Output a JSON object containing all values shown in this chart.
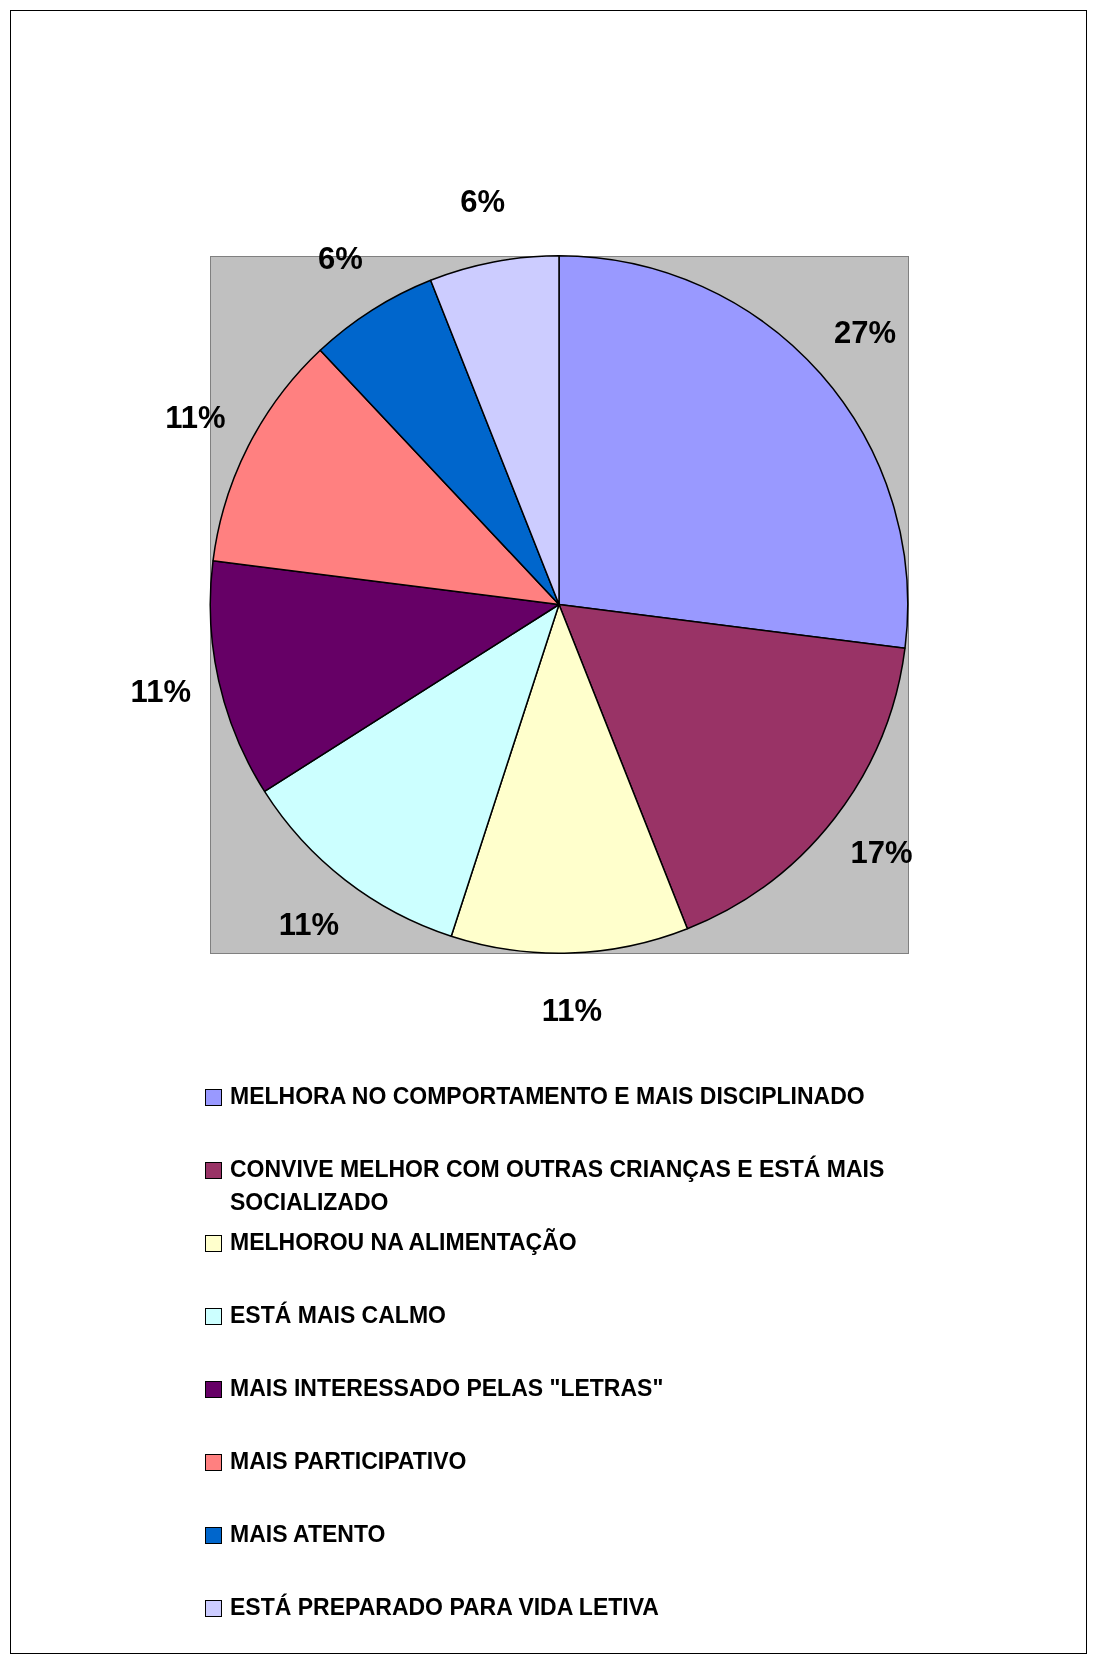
{
  "chart_data": {
    "type": "pie",
    "categories": [
      "MELHORA NO COMPORTAMENTO E MAIS DISCIPLINADO",
      "CONVIVE MELHOR COM OUTRAS CRIANÇAS E ESTÁ MAIS SOCIALIZADO",
      "MELHOROU NA ALIMENTAÇÃO",
      "ESTÁ MAIS CALMO",
      "MAIS INTERESSADO PELAS \"LETRAS\"",
      "MAIS PARTICIPATIVO",
      "MAIS ATENTO",
      "ESTÁ PREPARADO PARA VIDA LETIVA"
    ],
    "values": [
      27,
      17,
      11,
      11,
      11,
      11,
      6,
      6
    ],
    "colors": [
      "#9999ff",
      "#993366",
      "#ffffcc",
      "#ccffff",
      "#660066",
      "#ff8080",
      "#0066cc",
      "#ccccff"
    ],
    "value_labels": [
      "27%",
      "17%",
      "11%",
      "11%",
      "11%",
      "11%",
      "6%",
      "6%"
    ],
    "legend": "bottom"
  }
}
